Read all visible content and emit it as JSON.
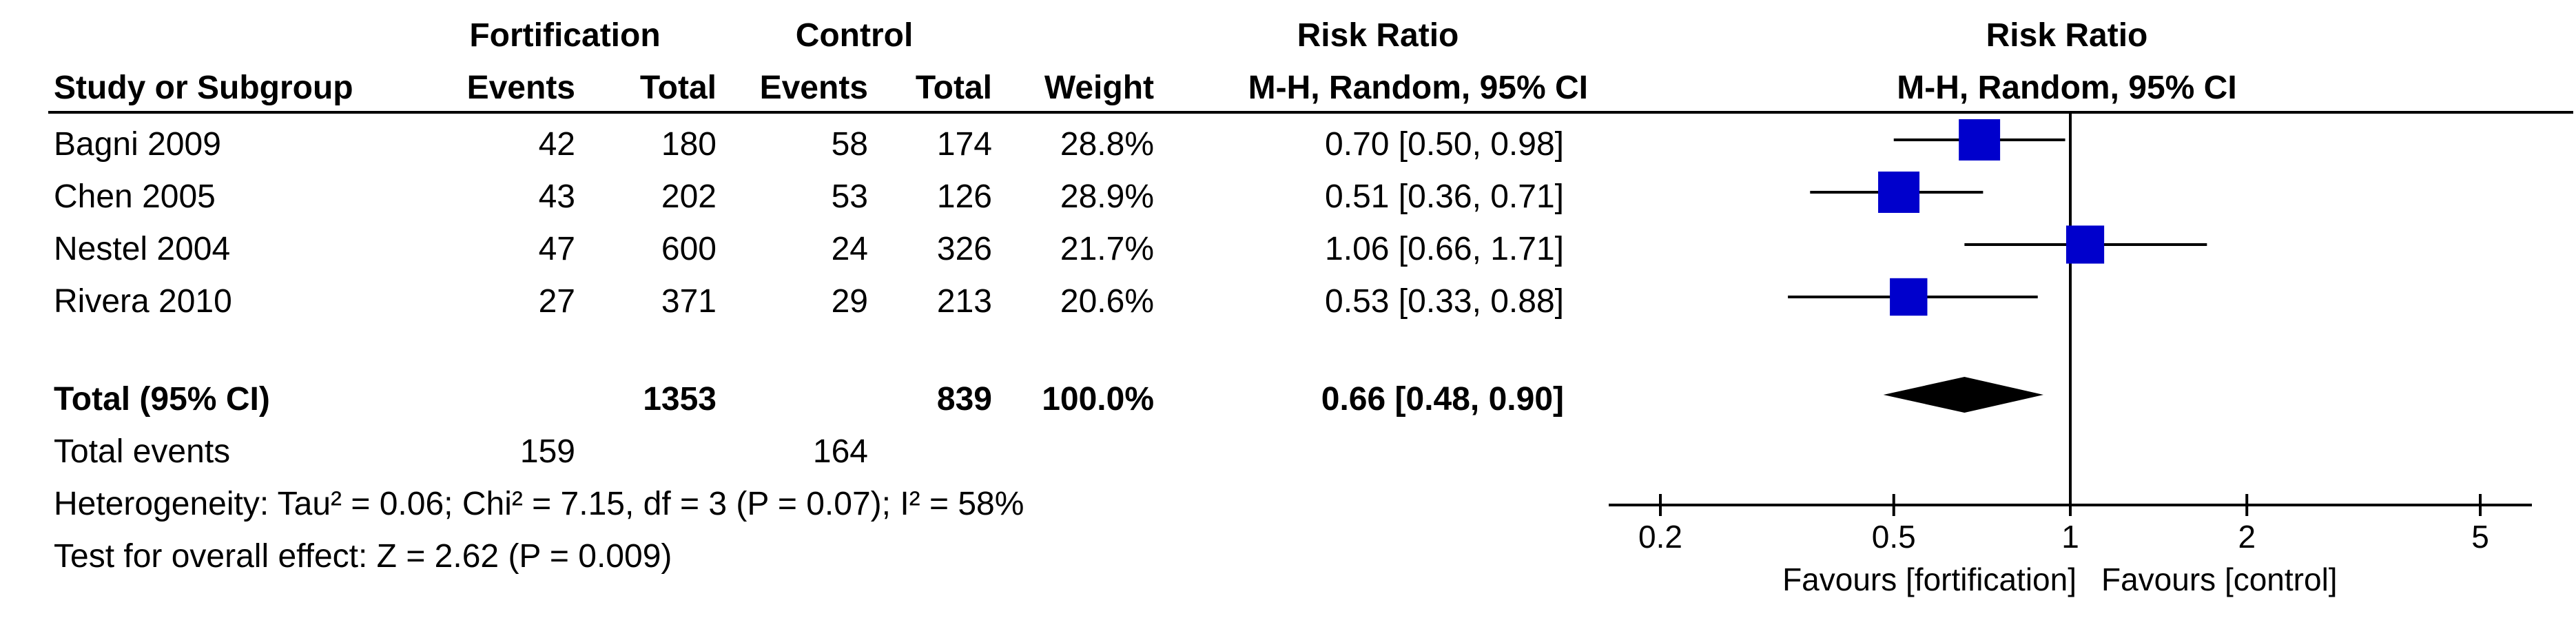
{
  "table": {
    "group_headers": {
      "treatment": "Fortification",
      "control": "Control",
      "effect": "Risk Ratio",
      "plot": "Risk Ratio"
    },
    "columns": {
      "study": "Study or Subgroup",
      "events_t": "Events",
      "total_t": "Total",
      "events_c": "Events",
      "total_c": "Total",
      "weight": "Weight",
      "effect": "M-H, Random, 95% CI",
      "plot": "M-H, Random, 95% CI"
    },
    "rows": [
      {
        "study": "Bagni 2009",
        "events_t": "42",
        "total_t": "180",
        "events_c": "58",
        "total_c": "174",
        "weight": "28.8%",
        "effect": "0.70 [0.50, 0.98]"
      },
      {
        "study": "Chen 2005",
        "events_t": "43",
        "total_t": "202",
        "events_c": "53",
        "total_c": "126",
        "weight": "28.9%",
        "effect": "0.51 [0.36, 0.71]"
      },
      {
        "study": "Nestel 2004",
        "events_t": "47",
        "total_t": "600",
        "events_c": "24",
        "total_c": "326",
        "weight": "21.7%",
        "effect": "1.06 [0.66, 1.71]"
      },
      {
        "study": "Rivera 2010",
        "events_t": "27",
        "total_t": "371",
        "events_c": "29",
        "total_c": "213",
        "weight": "20.6%",
        "effect": "0.53 [0.33, 0.88]"
      }
    ],
    "total": {
      "label": "Total (95% CI)",
      "total_t": "1353",
      "total_c": "839",
      "weight": "100.0%",
      "effect": "0.66 [0.48, 0.90]"
    },
    "total_events": {
      "label": "Total events",
      "events_t": "159",
      "events_c": "164"
    },
    "heterogeneity": "Heterogeneity: Tau² = 0.06; Chi² = 7.15, df = 3 (P = 0.07); I² = 58%",
    "overall_effect": "Test for overall effect: Z = 2.62 (P = 0.009)"
  },
  "chart_data": {
    "type": "forest",
    "scale": "log",
    "xlim": [
      0.2,
      5
    ],
    "null_line": 1,
    "ticks": [
      {
        "value": 0.2,
        "label": "0.2"
      },
      {
        "value": 0.5,
        "label": "0.5"
      },
      {
        "value": 1,
        "label": "1"
      },
      {
        "value": 2,
        "label": "2"
      },
      {
        "value": 5,
        "label": "5"
      }
    ],
    "favours_left": "Favours [fortification]",
    "favours_right": "Favours [control]",
    "studies": [
      {
        "name": "Bagni 2009",
        "rr": 0.7,
        "lo": 0.5,
        "hi": 0.98,
        "weight": 28.8
      },
      {
        "name": "Chen 2005",
        "rr": 0.51,
        "lo": 0.36,
        "hi": 0.71,
        "weight": 28.9
      },
      {
        "name": "Nestel 2004",
        "rr": 1.06,
        "lo": 0.66,
        "hi": 1.71,
        "weight": 21.7
      },
      {
        "name": "Rivera 2010",
        "rr": 0.53,
        "lo": 0.33,
        "hi": 0.88,
        "weight": 20.6
      }
    ],
    "pooled": {
      "rr": 0.66,
      "lo": 0.48,
      "hi": 0.9
    },
    "colors": {
      "marker": "#0000cc",
      "pooled": "#000000"
    }
  }
}
